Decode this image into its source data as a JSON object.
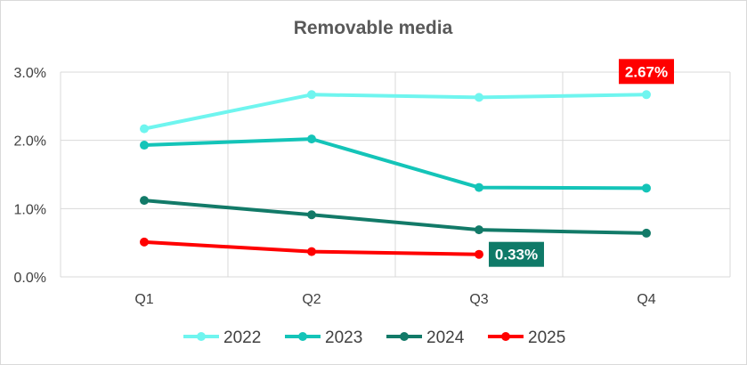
{
  "chart_data": {
    "type": "line",
    "title": "Removable media",
    "categories": [
      "Q1",
      "Q2",
      "Q3",
      "Q4"
    ],
    "yticks": [
      "0.0%",
      "1.0%",
      "2.0%",
      "3.0%"
    ],
    "ylim": [
      0,
      3.0
    ],
    "grid": true,
    "legend_position": "bottom",
    "series": [
      {
        "name": "2022",
        "color": "#6ff5ef",
        "values": [
          2.17,
          2.67,
          2.63,
          2.67
        ]
      },
      {
        "name": "2023",
        "color": "#14c4b8",
        "values": [
          1.93,
          2.02,
          1.31,
          1.3
        ]
      },
      {
        "name": "2024",
        "color": "#127a68",
        "values": [
          1.12,
          0.91,
          0.69,
          0.64
        ]
      },
      {
        "name": "2025",
        "color": "#ff0000",
        "values": [
          0.51,
          0.37,
          0.33,
          null
        ]
      }
    ],
    "annotations": [
      {
        "text": "2.67%",
        "series": 0,
        "point": 3,
        "bg": "#ff0000"
      },
      {
        "text": "0.33%",
        "series": 3,
        "point": 2,
        "bg": "#0f7a68"
      }
    ]
  }
}
